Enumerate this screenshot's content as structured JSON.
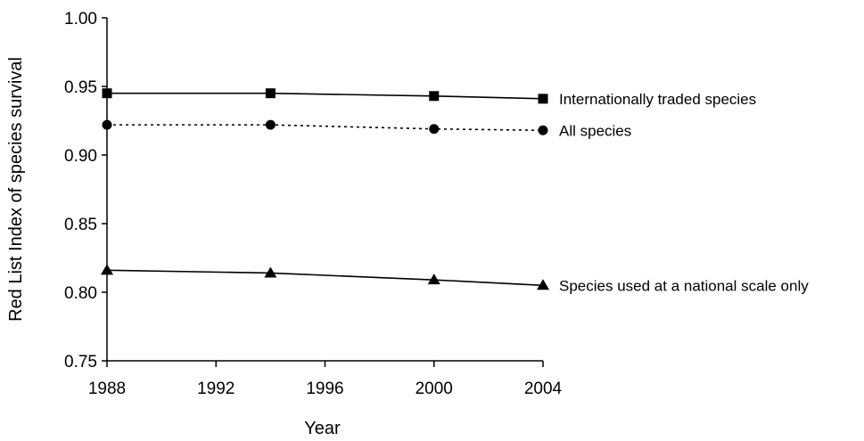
{
  "chart_data": {
    "type": "line",
    "title": "",
    "xlabel": "Year",
    "ylabel": "Red List Index of species survival",
    "x": [
      1988,
      1994,
      2000,
      2004
    ],
    "xlim": [
      1988,
      2004
    ],
    "ylim": [
      0.75,
      1.0
    ],
    "xticks": [
      "1988",
      "1992",
      "1996",
      "2000",
      "2004"
    ],
    "yticks": [
      "0.75",
      "0.80",
      "0.85",
      "0.90",
      "0.95",
      "1.00"
    ],
    "grid": false,
    "legend": "inline-right",
    "series": [
      {
        "name": "Internationally traded species",
        "values": [
          0.945,
          0.945,
          0.943,
          0.941
        ],
        "marker": "square",
        "line_style": "solid",
        "color": "#000000"
      },
      {
        "name": "All species",
        "values": [
          0.922,
          0.922,
          0.919,
          0.918
        ],
        "marker": "circle",
        "line_style": "dotted",
        "color": "#000000"
      },
      {
        "name": "Species used at a national scale only",
        "values": [
          0.816,
          0.814,
          0.809,
          0.805
        ],
        "marker": "triangle",
        "line_style": "solid",
        "color": "#000000"
      }
    ]
  }
}
